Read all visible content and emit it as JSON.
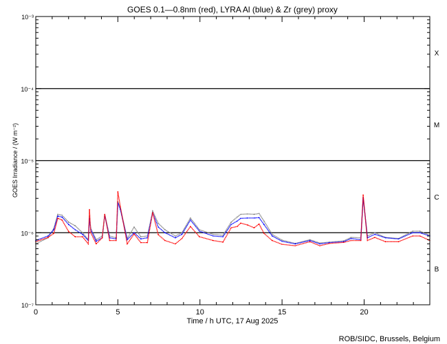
{
  "chart_data": {
    "type": "line",
    "title": "GOES 0.1—0.8nm (red), LYRA Al (blue) & Zr (grey) proxy",
    "xlabel": "Time / h UTC, 17 Aug 2025",
    "ylabel": "GOES Irradiance / (W m⁻²)",
    "xlim": [
      0,
      24
    ],
    "ylim": [
      1e-07,
      0.001
    ],
    "yscale": "log",
    "x_ticks": [
      0,
      5,
      10,
      15,
      20
    ],
    "x_tick_labels": [
      "0",
      "5",
      "10",
      "15",
      "20"
    ],
    "y_ticks": [
      1e-07,
      1e-06,
      1e-05,
      0.0001,
      0.001
    ],
    "y_tick_labels": [
      "10⁻⁷",
      "10⁻⁶",
      "10⁻⁵",
      "10⁻⁴",
      "10⁻³"
    ],
    "flare_classes": [
      {
        "label": "X",
        "range": [
          0.0001,
          0.001
        ]
      },
      {
        "label": "M",
        "range": [
          1e-05,
          0.0001
        ]
      },
      {
        "label": "C",
        "range": [
          1e-06,
          1e-05
        ]
      },
      {
        "label": "B",
        "range": [
          1e-07,
          1e-06
        ]
      }
    ],
    "threshold_lines": [
      0.0001,
      1e-05,
      1e-06
    ],
    "grid": false,
    "series": [
      {
        "name": "LYRA Zr proxy",
        "color": "#808080",
        "x": [
          0,
          0.75,
          1.1,
          1.34,
          1.6,
          2.0,
          2.4,
          2.85,
          3.2,
          3.27,
          3.35,
          3.68,
          4.05,
          4.2,
          4.5,
          4.9,
          5.0,
          5.15,
          5.57,
          5.99,
          6.4,
          6.8,
          7.12,
          7.46,
          7.87,
          8.5,
          8.9,
          9.42,
          9.97,
          10.8,
          11.4,
          11.9,
          12.27,
          12.48,
          12.9,
          13.3,
          13.6,
          13.9,
          14.4,
          15.0,
          15.8,
          16.7,
          17.3,
          17.9,
          18.76,
          19.2,
          19.8,
          19.94,
          20.2,
          20.65,
          21.3,
          22.1,
          22.95,
          23.4,
          24
        ],
        "y": [
          7e-07,
          8.5e-07,
          1.15e-06,
          1.8e-06,
          1.75e-06,
          1.4e-06,
          1.25e-06,
          1e-06,
          8e-07,
          1.7e-06,
          1.15e-06,
          8e-07,
          9e-07,
          1.8e-06,
          9e-07,
          8.5e-07,
          2.7e-06,
          2.2e-06,
          8.3e-07,
          1.2e-06,
          8.8e-07,
          9e-07,
          2e-06,
          1.35e-06,
          1.1e-06,
          9e-07,
          1e-06,
          1.6e-06,
          1.1e-06,
          9.5e-07,
          9.2e-07,
          1.4e-06,
          1.65e-06,
          1.8e-06,
          1.82e-06,
          1.8e-06,
          1.85e-06,
          1.45e-06,
          9.5e-07,
          7.9e-07,
          7.1e-07,
          8e-07,
          7.2e-07,
          7.4e-07,
          7.7e-07,
          8.6e-07,
          8.5e-07,
          3e-06,
          9e-07,
          1e-06,
          8.6e-07,
          8.3e-07,
          1.05e-06,
          1.05e-06,
          9.2e-07
        ]
      },
      {
        "name": "LYRA Al proxy",
        "color": "#0000ff",
        "x": [
          0,
          0.75,
          1.1,
          1.34,
          1.6,
          2.0,
          2.4,
          2.85,
          3.2,
          3.27,
          3.35,
          3.68,
          4.05,
          4.2,
          4.5,
          4.9,
          5.0,
          5.15,
          5.57,
          5.99,
          6.4,
          6.8,
          7.12,
          7.46,
          7.87,
          8.5,
          8.9,
          9.42,
          9.97,
          10.8,
          11.4,
          11.9,
          12.27,
          12.48,
          12.9,
          13.3,
          13.6,
          13.9,
          14.4,
          15.0,
          15.8,
          16.7,
          17.3,
          17.9,
          18.76,
          19.2,
          19.8,
          19.94,
          20.2,
          20.65,
          21.3,
          22.1,
          22.95,
          23.4,
          24
        ],
        "y": [
          7.8e-07,
          9e-07,
          1.1e-06,
          1.7e-06,
          1.65e-06,
          1.3e-06,
          1.1e-06,
          9.5e-07,
          7.8e-07,
          1.6e-06,
          1.1e-06,
          7.6e-07,
          8.5e-07,
          1.75e-06,
          8.5e-07,
          8.2e-07,
          2.6e-06,
          2.1e-06,
          8e-07,
          1e-06,
          8.2e-07,
          8.5e-07,
          1.9e-06,
          1.2e-06,
          1e-06,
          8.5e-07,
          9.5e-07,
          1.5e-06,
          1.05e-06,
          9e-07,
          8.8e-07,
          1.3e-06,
          1.45e-06,
          1.58e-06,
          1.6e-06,
          1.6e-06,
          1.62e-06,
          1.3e-06,
          9e-07,
          7.6e-07,
          7e-07,
          7.8e-07,
          7e-07,
          7.3e-07,
          7.5e-07,
          8.3e-07,
          8e-07,
          3.1e-06,
          8.5e-07,
          9.5e-07,
          8.5e-07,
          8.2e-07,
          1e-06,
          1e-06,
          9e-07
        ]
      },
      {
        "name": "GOES 0.1-0.8nm",
        "color": "#ff0000",
        "x": [
          0,
          0.75,
          1.1,
          1.34,
          1.6,
          2.0,
          2.4,
          2.85,
          3.2,
          3.27,
          3.35,
          3.68,
          4.05,
          4.2,
          4.5,
          4.9,
          5.0,
          5.15,
          5.57,
          5.99,
          6.4,
          6.8,
          7.12,
          7.46,
          7.87,
          8.5,
          8.9,
          9.42,
          9.97,
          10.8,
          11.4,
          11.9,
          12.27,
          12.48,
          12.9,
          13.3,
          13.6,
          13.9,
          14.4,
          15.0,
          15.8,
          16.7,
          17.3,
          17.9,
          18.76,
          19.2,
          19.8,
          19.94,
          20.2,
          20.65,
          21.3,
          22.1,
          22.95,
          23.4,
          24
        ],
        "y": [
          7.5e-07,
          8.6e-07,
          9.8e-07,
          1.59e-06,
          1.5e-06,
          1.04e-06,
          8.8e-07,
          8.8e-07,
          7e-07,
          2.1e-06,
          1e-06,
          7e-07,
          8.5e-07,
          1.8e-06,
          7.8e-07,
          7.8e-07,
          3.7e-06,
          2.3e-06,
          7e-07,
          9.6e-07,
          7.3e-07,
          7.3e-07,
          1.9e-06,
          9.4e-07,
          7.8e-07,
          7e-07,
          8.3e-07,
          1.22e-06,
          8.8e-07,
          7.8e-07,
          7.4e-07,
          1.17e-06,
          1.22e-06,
          1.36e-06,
          1.28e-06,
          1.17e-06,
          1.32e-06,
          9.8e-07,
          7.8e-07,
          6.9e-07,
          6.6e-07,
          7.5e-07,
          6.6e-07,
          7.1e-07,
          7.35e-07,
          7.8e-07,
          7.8e-07,
          3.35e-06,
          7.8e-07,
          8.6e-07,
          7.5e-07,
          7.5e-07,
          9e-07,
          9e-07,
          7.8e-07
        ]
      }
    ],
    "credit": "ROB/SIDC, Brussels, Belgium"
  }
}
